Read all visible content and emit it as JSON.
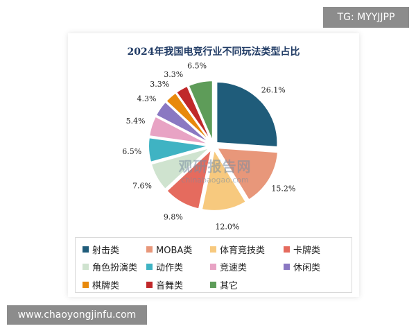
{
  "overlay": {
    "tag": "TG: MYYJJPP",
    "site": "www.chaoyongjinfu.com"
  },
  "watermark": {
    "brand": "观研报告网",
    "url": "chinabaogao.com"
  },
  "chart_data": {
    "type": "pie",
    "title": "2024年我国电竞行业不同玩法类型占比",
    "unit": "%",
    "legend_position": "bottom",
    "slices": [
      {
        "name": "射击类",
        "value": 26.1,
        "label": "26.1%",
        "color": "#1f5c7a"
      },
      {
        "name": "MOBA类",
        "value": 15.2,
        "label": "15.2%",
        "color": "#e8977a"
      },
      {
        "name": "体育竞技类",
        "value": 12.0,
        "label": "12.0%",
        "color": "#f7c97e"
      },
      {
        "name": "卡牌类",
        "value": 9.8,
        "label": "9.8%",
        "color": "#e56b5e"
      },
      {
        "name": "角色扮演类",
        "value": 7.6,
        "label": "7.6%",
        "color": "#cfe3cf"
      },
      {
        "name": "动作类",
        "value": 6.5,
        "label": "6.5%",
        "color": "#3fb3c3"
      },
      {
        "name": "竞速类",
        "value": 5.4,
        "label": "5.4%",
        "color": "#e8a3c4"
      },
      {
        "name": "休闲类",
        "value": 4.3,
        "label": "4.3%",
        "color": "#8a78c2"
      },
      {
        "name": "棋牌类",
        "value": 3.3,
        "label": "3.3%",
        "color": "#e8890c"
      },
      {
        "name": "音舞类",
        "value": 3.3,
        "label": "3.3%",
        "color": "#c0282a"
      },
      {
        "name": "其它",
        "value": 6.5,
        "label": "6.5%",
        "color": "#5e9c59"
      }
    ]
  }
}
